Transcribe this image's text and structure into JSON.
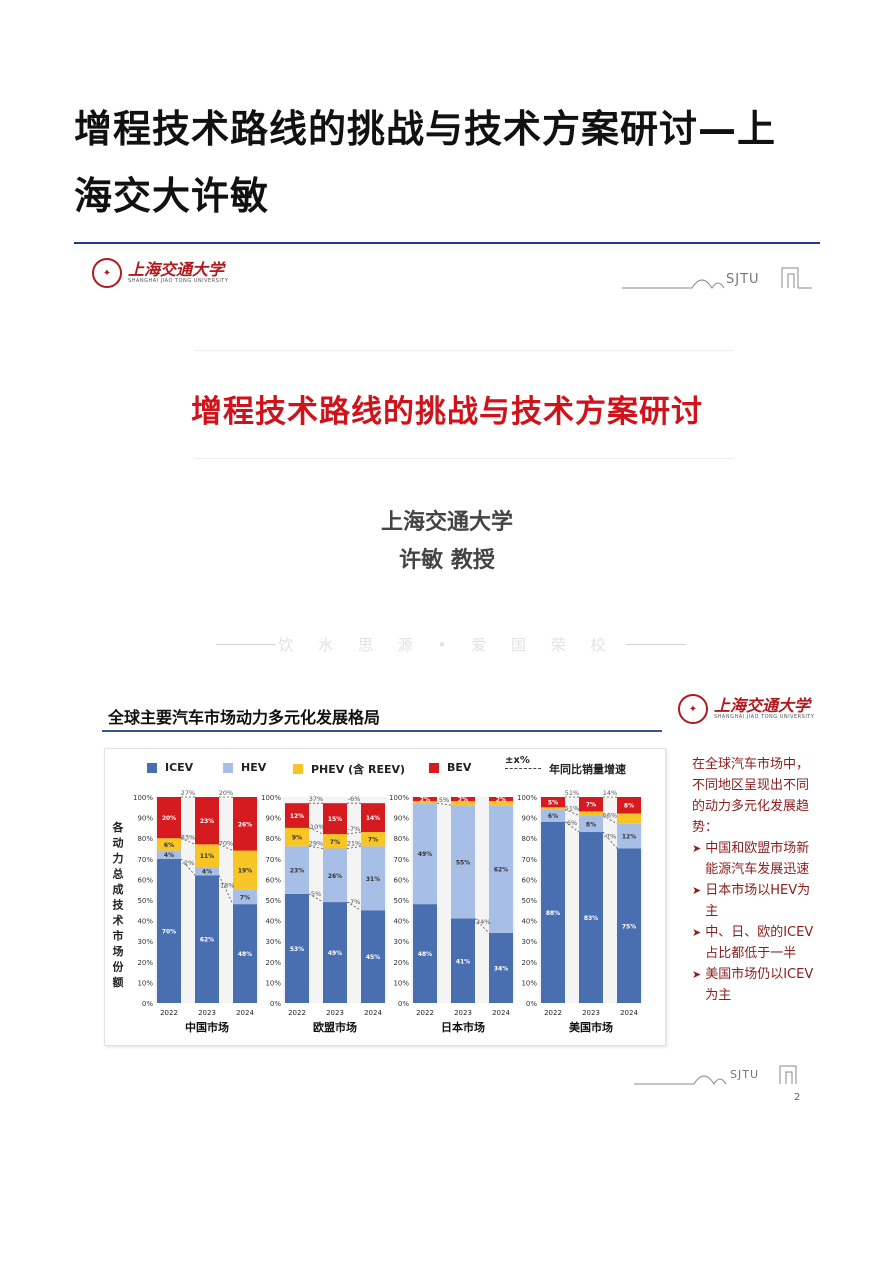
{
  "article": {
    "title": "增程技术路线的挑战与技术方案研讨—上海交大许敏"
  },
  "slide1": {
    "logo_cn": "上海交通大学",
    "logo_en": "SHANGHAI JIAO TONG UNIVERSITY",
    "sjtu_mark": "SJTU",
    "title": "增程技术路线的挑战与技术方案研讨",
    "org": "上海交通大学",
    "author": "许敏 教授",
    "motto": "饮 水 思 源 • 爱 国 荣 校"
  },
  "slide2": {
    "title": "全球主要汽车市场动力多元化发展格局",
    "logo_cn": "上海交通大学",
    "logo_en": "SHANGHAI JIAO TONG UNIVERSITY",
    "sjtu_mark": "SJTU",
    "page_number": "2",
    "legend": {
      "icev": "ICEV",
      "hev": "HEV",
      "phev": "PHEV (含 REEV)",
      "bev": "BEV",
      "yoy_symbol": "±x%",
      "yoy_label": "年同比销量增速"
    },
    "side_intro": "在全球汽车市场中，不同地区呈现出不同的动力多元化发展趋势：",
    "side_points": [
      "中国和欧盟市场新能源汽车发展迅速",
      "日本市场以HEV为主",
      "中、日、欧的ICEV占比都低于一半",
      "美国市场仍以ICEV为主"
    ]
  },
  "colors": {
    "icev": "#4a6fb0",
    "hev": "#a7bfe6",
    "phev": "#f7c525",
    "bev": "#d51b20",
    "accent_red": "#d0121b",
    "rule_blue": "#1f3c88"
  },
  "chart_data": {
    "type": "bar",
    "stacked": true,
    "ylabel": "各动力总成技术市场份额",
    "yticks": [
      "0%",
      "10%",
      "20%",
      "30%",
      "40%",
      "50%",
      "60%",
      "70%",
      "80%",
      "90%",
      "100%"
    ],
    "ylim": [
      0,
      100
    ],
    "series_order": [
      "ICEV",
      "HEV",
      "PHEV (含 REEV)",
      "BEV"
    ],
    "groups": [
      {
        "market": "中国市场",
        "years": [
          "2022",
          "2023",
          "2024"
        ],
        "icev": [
          70,
          62,
          48
        ],
        "hev": [
          4,
          4,
          7
        ],
        "phev": [
          6,
          11,
          19
        ],
        "bev": [
          20,
          23,
          26
        ],
        "icev_labels": [
          "70%",
          "62%",
          "48%"
        ],
        "hev_labels": [
          "4%",
          "4%",
          "7%"
        ],
        "phev_labels": [
          "6%",
          "11%",
          "19%"
        ],
        "bev_labels": [
          "20%",
          "23%",
          "26%"
        ],
        "yoy": [
          {
            "from": 0,
            "to": 1,
            "series": "bev",
            "text": "27%"
          },
          {
            "from": 1,
            "to": 2,
            "series": "bev",
            "text": "20%"
          },
          {
            "from": 0,
            "to": 1,
            "series": "phev",
            "text": "83%"
          },
          {
            "from": 1,
            "to": 2,
            "series": "phev",
            "text": "70%"
          },
          {
            "from": 0,
            "to": 1,
            "series": "icev",
            "text": "-2%"
          },
          {
            "from": 1,
            "to": 2,
            "series": "icev",
            "text": "-18%"
          }
        ]
      },
      {
        "market": "欧盟市场",
        "years": [
          "2022",
          "2023",
          "2024"
        ],
        "icev": [
          53,
          49,
          45
        ],
        "hev": [
          23,
          26,
          31
        ],
        "phev": [
          9,
          7,
          7
        ],
        "bev": [
          12,
          15,
          14
        ],
        "icev_labels": [
          "53%",
          "49%",
          "45%"
        ],
        "hev_labels": [
          "23%",
          "26%",
          "31%"
        ],
        "phev_labels": [
          "9%",
          "7%",
          "7%"
        ],
        "bev_labels": [
          "12%",
          "15%",
          "14%"
        ],
        "yoy": [
          {
            "from": 0,
            "to": 1,
            "series": "bev",
            "text": "37%"
          },
          {
            "from": 1,
            "to": 2,
            "series": "bev",
            "text": "-6%"
          },
          {
            "from": 0,
            "to": 1,
            "series": "phev",
            "text": "-10%"
          },
          {
            "from": 1,
            "to": 2,
            "series": "phev",
            "text": "-7%"
          },
          {
            "from": 0,
            "to": 1,
            "series": "hev",
            "text": "29%"
          },
          {
            "from": 1,
            "to": 2,
            "series": "hev",
            "text": "21%"
          },
          {
            "from": 0,
            "to": 1,
            "series": "icev",
            "text": "5%"
          },
          {
            "from": 1,
            "to": 2,
            "series": "icev",
            "text": "-7%"
          }
        ]
      },
      {
        "market": "日本市场",
        "years": [
          "2022",
          "2023",
          "2024"
        ],
        "icev": [
          48,
          41,
          34
        ],
        "hev": [
          49,
          55,
          62
        ],
        "phev": [
          1,
          2,
          2
        ],
        "bev": [
          2,
          2,
          2
        ],
        "icev_labels": [
          "48%",
          "41%",
          "34%"
        ],
        "hev_labels": [
          "49%",
          "55%",
          "62%"
        ],
        "phev_labels": [
          "",
          "",
          ""
        ],
        "bev_labels": [
          "2%",
          "2%",
          "2%"
        ],
        "yoy": [
          {
            "from": 0,
            "to": 1,
            "series": "hev",
            "text": "5%"
          },
          {
            "from": 1,
            "to": 2,
            "series": "icev",
            "text": "-24%"
          }
        ]
      },
      {
        "market": "美国市场",
        "years": [
          "2022",
          "2023",
          "2024"
        ],
        "icev": [
          88,
          83,
          75
        ],
        "hev": [
          6,
          8,
          12
        ],
        "phev": [
          1,
          2,
          5
        ],
        "bev": [
          5,
          7,
          8
        ],
        "icev_labels": [
          "88%",
          "83%",
          "75%"
        ],
        "hev_labels": [
          "6%",
          "8%",
          "12%"
        ],
        "phev_labels": [
          "",
          "",
          ""
        ],
        "bev_labels": [
          "5%",
          "7%",
          "8%"
        ],
        "yoy": [
          {
            "from": 0,
            "to": 1,
            "series": "bev",
            "text": "51%"
          },
          {
            "from": 1,
            "to": 2,
            "series": "bev",
            "text": "14%"
          },
          {
            "from": 0,
            "to": 1,
            "series": "hev",
            "text": "51%"
          },
          {
            "from": 1,
            "to": 2,
            "series": "hev",
            "text": "56%"
          },
          {
            "from": 0,
            "to": 1,
            "series": "icev",
            "text": "6%"
          },
          {
            "from": 1,
            "to": 2,
            "series": "icev",
            "text": "-7%"
          }
        ]
      }
    ]
  }
}
